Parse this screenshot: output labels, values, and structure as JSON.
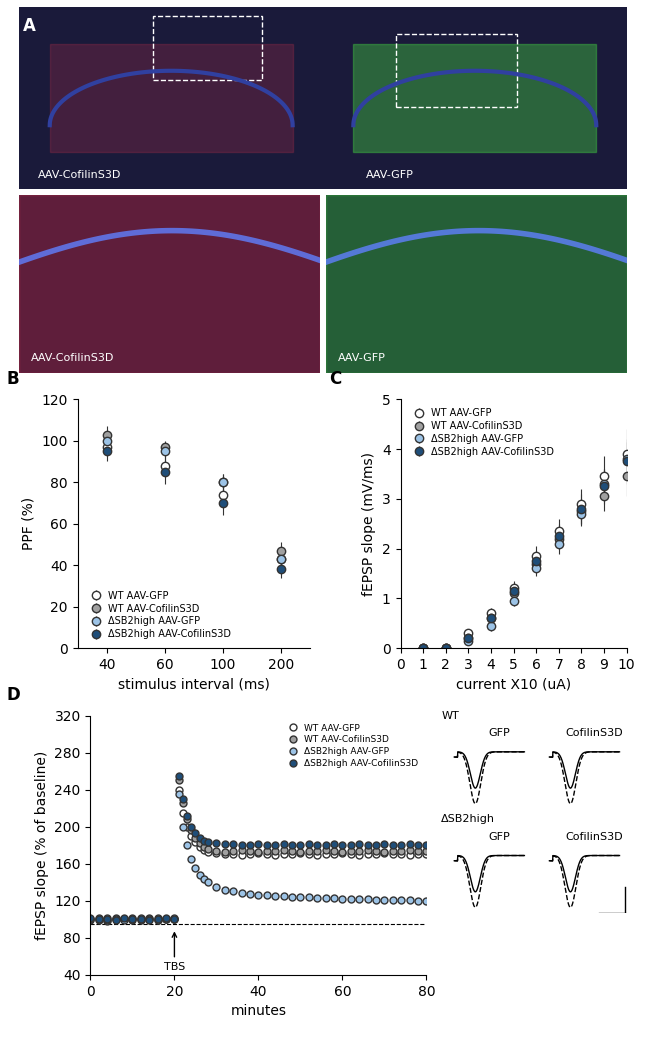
{
  "image_panel": {
    "panel_label": "A",
    "type": "image",
    "images": [
      {
        "label": "AAV-CofilinS3D",
        "color": "#c0304a"
      },
      {
        "label": "AAV-GFP",
        "color": "#40c040"
      },
      {
        "label": "AAV-CofilinS3D",
        "color": "#c0304a"
      },
      {
        "label": "AAV-GFP",
        "color": "#40c040"
      }
    ]
  },
  "chart_data": [
    {
      "panel_label": "B",
      "type": "scatter",
      "x_label": "stimulus interval (ms)",
      "y_label": "PPF (%)",
      "categories": [
        "40",
        "60",
        "100",
        "200"
      ],
      "ylim": [
        0,
        120
      ],
      "yticks": [
        0,
        20,
        40,
        60,
        80,
        100,
        120
      ],
      "legend": "lower left",
      "marker": "o",
      "series": [
        {
          "name": "WT AAV-GFP",
          "color": "#ffffff",
          "values": [
            97,
            88,
            74,
            43
          ],
          "errors": [
            4,
            5,
            5,
            4
          ]
        },
        {
          "name": "WT AAV-CofilinS3D",
          "color": "#a0a0a0",
          "values": [
            103,
            97,
            80,
            47
          ],
          "errors": [
            4,
            3,
            4,
            4
          ]
        },
        {
          "name": "ΔSB2high AAV-GFP",
          "color": "#9cc3e6",
          "values": [
            100,
            95,
            80,
            43
          ],
          "errors": [
            4,
            4,
            4,
            4
          ]
        },
        {
          "name": "ΔSB2high AAV-CofilinS3D",
          "color": "#1f4e79",
          "values": [
            95,
            85,
            70,
            38
          ],
          "errors": [
            5,
            6,
            6,
            4
          ]
        }
      ]
    },
    {
      "panel_label": "C",
      "type": "scatter",
      "x_label": "current X10 (uA)",
      "y_label": "fEPSP slope (mV/ms)",
      "x": [
        1,
        2,
        3,
        4,
        5,
        6,
        7,
        8,
        9,
        10
      ],
      "xlim": [
        0,
        10
      ],
      "xticks": [
        0,
        1,
        2,
        3,
        4,
        5,
        6,
        7,
        8,
        9,
        10
      ],
      "ylim": [
        0,
        5
      ],
      "yticks": [
        0,
        1,
        2,
        3,
        4,
        5
      ],
      "legend": "upper left",
      "marker": "o",
      "series": [
        {
          "name": "WT AAV-GFP",
          "color": "#ffffff",
          "values": [
            0,
            0,
            0.3,
            0.7,
            1.2,
            1.85,
            2.35,
            2.9,
            3.45,
            3.9
          ],
          "errors": [
            0,
            0,
            0.05,
            0.1,
            0.15,
            0.2,
            0.25,
            0.3,
            0.4,
            0.5
          ]
        },
        {
          "name": "WT AAV-CofilinS3D",
          "color": "#a0a0a0",
          "values": [
            0,
            0,
            0.2,
            0.6,
            1.1,
            1.7,
            2.2,
            2.75,
            3.05,
            3.45
          ],
          "errors": [
            0,
            0,
            0.05,
            0.1,
            0.15,
            0.2,
            0.2,
            0.25,
            0.3,
            0.4
          ]
        },
        {
          "name": "ΔSB2high AAV-GFP",
          "color": "#9cc3e6",
          "values": [
            0,
            0,
            0.15,
            0.45,
            0.95,
            1.6,
            2.1,
            2.7,
            3.3,
            3.8
          ],
          "errors": [
            0,
            0,
            0.05,
            0.1,
            0.1,
            0.15,
            0.2,
            0.25,
            0.3,
            0.35
          ]
        },
        {
          "name": "ΔSB2high AAV-CofilinS3D",
          "color": "#1f4e79",
          "values": [
            0,
            0,
            0.2,
            0.6,
            1.15,
            1.75,
            2.25,
            2.8,
            3.25,
            3.75
          ],
          "errors": [
            0,
            0,
            0.05,
            0.1,
            0.15,
            0.2,
            0.25,
            0.3,
            0.35,
            0.45
          ]
        }
      ]
    },
    {
      "panel_label": "D",
      "type": "scatter",
      "x_label": "minutes",
      "y_label": "fEPSP slope (% of baseline)",
      "x": [
        0,
        2,
        4,
        6,
        8,
        10,
        12,
        14,
        16,
        18,
        20,
        21,
        22,
        23,
        24,
        25,
        26,
        27,
        28,
        30,
        32,
        34,
        36,
        38,
        40,
        42,
        44,
        46,
        48,
        50,
        52,
        54,
        56,
        58,
        60,
        62,
        64,
        66,
        68,
        70,
        72,
        74,
        76,
        78,
        80
      ],
      "xlim": [
        0,
        80
      ],
      "xticks": [
        0,
        20,
        40,
        60,
        80
      ],
      "ylim": [
        40,
        320
      ],
      "yticks": [
        40,
        80,
        120,
        160,
        200,
        240,
        280,
        320
      ],
      "legend": "upper right",
      "marker": "o",
      "hline": 95,
      "annotations": [
        {
          "text": "TBS",
          "x": 20
        }
      ],
      "trace_labels": {
        "rows": [
          "WT",
          "ΔSB2high"
        ],
        "columns": [
          "GFP",
          "CofilinS3D"
        ]
      },
      "series": [
        {
          "name": "WT AAV-GFP",
          "color": "#ffffff",
          "values": [
            99,
            100,
            98,
            101,
            100,
            99,
            100,
            101,
            99,
            100,
            100,
            240,
            215,
            200,
            190,
            183,
            178,
            175,
            173,
            171,
            170,
            170,
            169,
            170,
            171,
            170,
            169,
            170,
            170,
            171,
            170,
            169,
            170,
            170,
            171,
            170,
            169,
            170,
            170,
            171,
            170,
            170,
            169,
            170,
            170
          ]
        },
        {
          "name": "WT AAV-CofilinS3D",
          "color": "#a0a0a0",
          "values": [
            100,
            101,
            99,
            100,
            100,
            101,
            99,
            100,
            101,
            100,
            100,
            250,
            225,
            208,
            196,
            188,
            182,
            178,
            176,
            174,
            173,
            174,
            175,
            174,
            173,
            174,
            174,
            175,
            174,
            173,
            174,
            174,
            175,
            174,
            173,
            174,
            174,
            175,
            174,
            173,
            174,
            174,
            175,
            174,
            174
          ]
        },
        {
          "name": "ΔSB2high AAV-GFP",
          "color": "#9cc3e6",
          "values": [
            100,
            99,
            101,
            100,
            99,
            100,
            101,
            100,
            99,
            100,
            101,
            235,
            200,
            180,
            165,
            155,
            148,
            143,
            140,
            135,
            132,
            130,
            128,
            127,
            126,
            126,
            125,
            125,
            124,
            124,
            124,
            123,
            123,
            123,
            122,
            122,
            122,
            122,
            121,
            121,
            121,
            121,
            121,
            120,
            120
          ]
        },
        {
          "name": "ΔSB2high AAV-CofilinS3D",
          "color": "#1f4e79",
          "values": [
            101,
            100,
            100,
            99,
            101,
            100,
            100,
            99,
            100,
            101,
            100,
            255,
            230,
            212,
            200,
            193,
            188,
            185,
            183,
            182,
            181,
            181,
            180,
            180,
            181,
            180,
            180,
            181,
            180,
            180,
            181,
            180,
            180,
            181,
            180,
            180,
            181,
            180,
            180,
            181,
            180,
            180,
            181,
            180,
            180
          ]
        }
      ]
    }
  ]
}
